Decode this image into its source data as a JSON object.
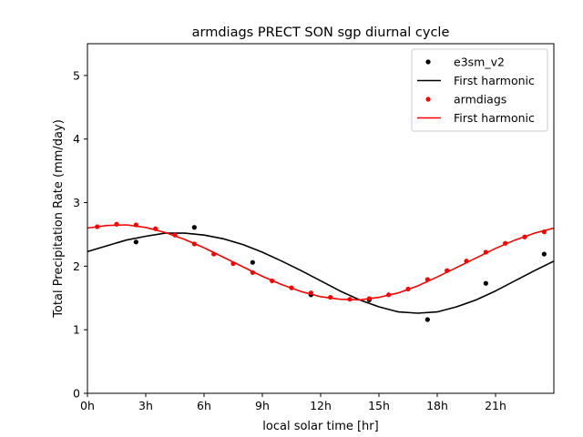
{
  "chart_data": {
    "type": "line",
    "title": "armdiags PRECT SON sgp diurnal cycle",
    "xlabel": "local solar time [hr]",
    "ylabel": "Total Precipitation Rate (mm/day)",
    "xlim": [
      0,
      24
    ],
    "ylim": [
      0,
      5.5
    ],
    "xticks": [
      {
        "value": 0,
        "label": "0h"
      },
      {
        "value": 3,
        "label": "3h"
      },
      {
        "value": 6,
        "label": "6h"
      },
      {
        "value": 9,
        "label": "9h"
      },
      {
        "value": 12,
        "label": "12h"
      },
      {
        "value": 15,
        "label": "15h"
      },
      {
        "value": 18,
        "label": "18h"
      },
      {
        "value": 21,
        "label": "21h"
      }
    ],
    "yticks": [
      {
        "value": 0,
        "label": "0"
      },
      {
        "value": 1,
        "label": "1"
      },
      {
        "value": 2,
        "label": "2"
      },
      {
        "value": 3,
        "label": "3"
      },
      {
        "value": 4,
        "label": "4"
      },
      {
        "value": 5,
        "label": "5"
      }
    ],
    "grid": false,
    "legend_position": "top-right",
    "series": [
      {
        "name": "e3sm_v2",
        "kind": "scatter",
        "color": "#000000",
        "x": [
          2.5,
          5.5,
          8.5,
          11.5,
          14.5,
          17.5,
          20.5,
          23.5
        ],
        "y": [
          2.38,
          2.61,
          2.06,
          1.55,
          1.47,
          1.16,
          1.73,
          2.19
        ]
      },
      {
        "name": "First harmonic",
        "kind": "line",
        "color": "#000000",
        "x": [
          0,
          1,
          2,
          3,
          4,
          5,
          6,
          7,
          8,
          9,
          10,
          11,
          12,
          13,
          14,
          15,
          16,
          17,
          18,
          19,
          20,
          21,
          22,
          23,
          24
        ],
        "y": [
          2.23,
          2.32,
          2.41,
          2.47,
          2.52,
          2.52,
          2.49,
          2.43,
          2.34,
          2.22,
          2.08,
          1.93,
          1.77,
          1.61,
          1.47,
          1.36,
          1.28,
          1.26,
          1.28,
          1.36,
          1.47,
          1.61,
          1.77,
          1.93,
          2.08
        ]
      },
      {
        "name": "armdiags",
        "kind": "scatter",
        "color": "#ff0000",
        "x": [
          0.5,
          1.5,
          2.5,
          3.5,
          4.5,
          5.5,
          6.5,
          7.5,
          8.5,
          9.5,
          10.5,
          11.5,
          12.5,
          13.5,
          14.5,
          15.5,
          16.5,
          17.5,
          18.5,
          19.5,
          20.5,
          21.5,
          22.5,
          23.5
        ],
        "y": [
          2.62,
          2.66,
          2.65,
          2.59,
          2.49,
          2.35,
          2.19,
          2.04,
          1.9,
          1.77,
          1.66,
          1.58,
          1.51,
          1.48,
          1.49,
          1.55,
          1.64,
          1.79,
          1.93,
          2.08,
          2.22,
          2.36,
          2.46,
          2.54
        ]
      },
      {
        "name": "First harmonic",
        "kind": "line",
        "color": "#ff0000",
        "x": [
          0,
          1,
          2,
          3,
          4,
          5,
          6,
          7,
          8,
          9,
          10,
          11,
          12,
          13,
          14,
          15,
          16,
          17,
          18,
          19,
          20,
          21,
          22,
          23,
          24
        ],
        "y": [
          2.6,
          2.64,
          2.65,
          2.61,
          2.53,
          2.42,
          2.29,
          2.14,
          1.99,
          1.84,
          1.71,
          1.6,
          1.52,
          1.48,
          1.47,
          1.51,
          1.58,
          1.69,
          1.83,
          1.98,
          2.13,
          2.28,
          2.41,
          2.52,
          2.6
        ]
      }
    ]
  }
}
